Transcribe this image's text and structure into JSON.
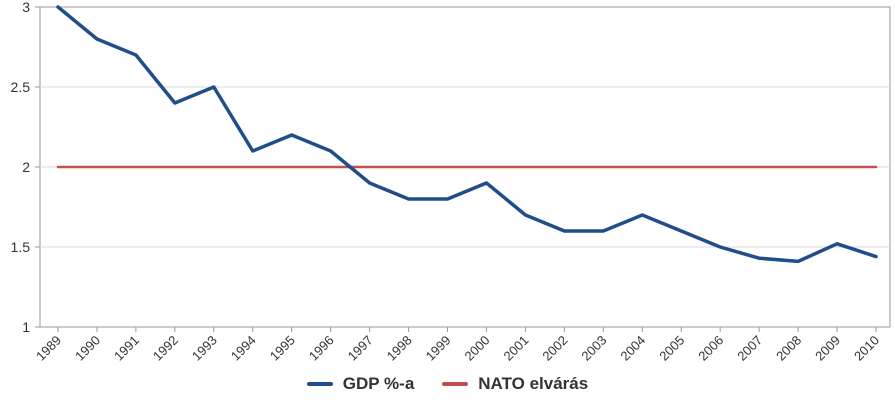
{
  "chart_data": {
    "type": "line",
    "title": "",
    "xlabel": "",
    "ylabel": "",
    "ylim": [
      1,
      3
    ],
    "yticks": [
      1,
      1.5,
      2,
      2.5,
      3
    ],
    "ytick_labels": [
      "1",
      "1.5",
      "2",
      "2.5",
      "3"
    ],
    "grid": true,
    "legend_position": "bottom",
    "categories": [
      "1989",
      "1990",
      "1991",
      "1992",
      "1993",
      "1994",
      "1995",
      "1996",
      "1997",
      "1998",
      "1999",
      "2000",
      "2001",
      "2002",
      "2003",
      "2004",
      "2005",
      "2006",
      "2007",
      "2008",
      "2009",
      "2010"
    ],
    "series": [
      {
        "name": "GDP %-a",
        "color": "#1f4e89",
        "values": [
          3.0,
          2.8,
          2.7,
          2.4,
          2.5,
          2.1,
          2.2,
          2.1,
          1.9,
          1.8,
          1.8,
          1.9,
          1.7,
          1.6,
          1.6,
          1.7,
          1.6,
          1.5,
          1.43,
          1.41,
          1.52,
          1.44
        ]
      },
      {
        "name": "NATO elvárás",
        "color": "#c0504d",
        "values": [
          2,
          2,
          2,
          2,
          2,
          2,
          2,
          2,
          2,
          2,
          2,
          2,
          2,
          2,
          2,
          2,
          2,
          2,
          2,
          2,
          2,
          2
        ]
      }
    ]
  }
}
